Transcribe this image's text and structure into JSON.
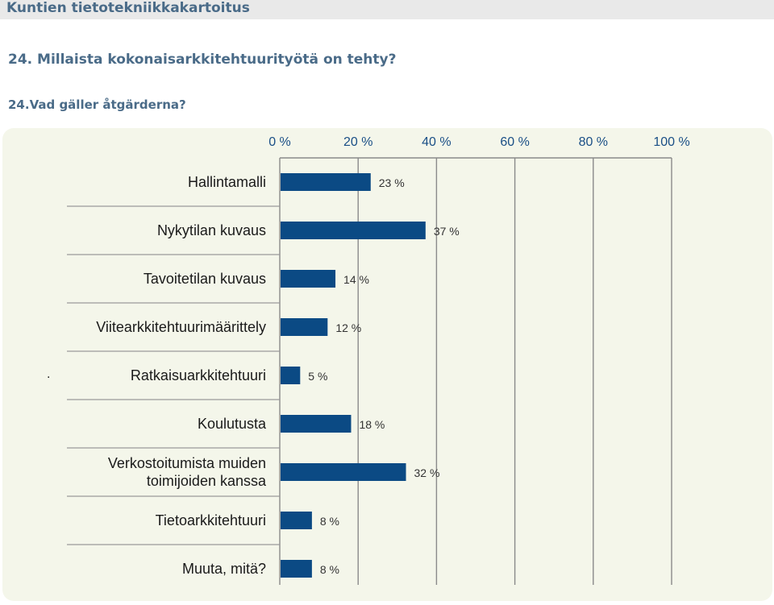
{
  "header": {
    "app_title": "Kuntien tietotekniikkakartoitus",
    "question": "24. Millaista kokonaisarkkitehtuurityötä on tehty?",
    "question_sv": "24.Vad gäller åtgärderna?"
  },
  "stray_mark": ".",
  "chart_data": {
    "type": "bar",
    "orientation": "horizontal",
    "categories": [
      [
        "Hallintamalli"
      ],
      [
        "Nykytilan kuvaus"
      ],
      [
        "Tavoitetilan kuvaus"
      ],
      [
        "Viitearkkitehtuurimäärittely"
      ],
      [
        "Ratkaisuarkkitehtuuri"
      ],
      [
        "Koulutusta"
      ],
      [
        "Verkostoitumista muiden",
        "toimijoiden kanssa"
      ],
      [
        "Tietoarkkitehtuuri"
      ],
      [
        "Muuta, mitä?"
      ]
    ],
    "values": [
      23,
      37,
      14,
      12,
      5,
      18,
      32,
      8,
      8
    ],
    "value_labels": [
      "23 %",
      "37 %",
      "14 %",
      "12 %",
      "5 %",
      "18 %",
      "32 %",
      "8 %",
      "8 %"
    ],
    "x_ticks": [
      "0 %",
      "20 %",
      "40 %",
      "60 %",
      "80 %",
      "100 %"
    ],
    "xlim": [
      0,
      100
    ],
    "axis_position": "top",
    "grid": true,
    "colors": {
      "bar": "#0b4a84",
      "tick_label": "#1a4f86",
      "grid": "#8a8a8a",
      "panel": "#f4f6ea",
      "category_text": "#1a1a1a",
      "value_text": "#333333"
    }
  }
}
